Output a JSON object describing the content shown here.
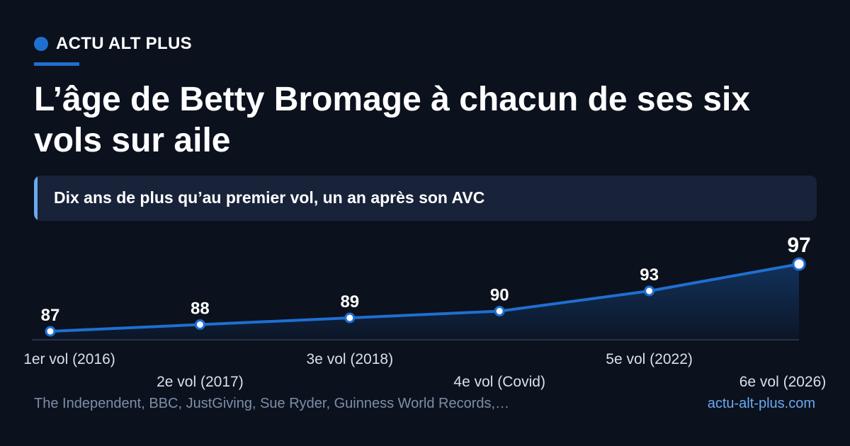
{
  "header": {
    "brand": "ACTU ALT PLUS",
    "title": "L’âge de Betty Bromage à chacun de ses six vols sur aile",
    "subtitle": "Dix ans de plus qu’au premier vol, un an après son AVC"
  },
  "footer": {
    "source": "The Independent, BBC, JustGiving, Sue Ryder, Guinness World Records,…",
    "site": "actu-alt-plus.com"
  },
  "colors": {
    "background": "#0b111d",
    "accent": "#1f6fd1",
    "accent_light": "#6aaaf0",
    "subtitle_bg": "#18233a",
    "muted_text": "#7d8ea8"
  },
  "chart_data": {
    "type": "area",
    "categories": [
      "1er vol (2016)",
      "2e vol (2017)",
      "3e vol (2018)",
      "4e vol (Covid)",
      "5e vol (2022)",
      "6e vol (2026)"
    ],
    "values": [
      87,
      88,
      89,
      90,
      93,
      97
    ],
    "data_labels": [
      "87",
      "88",
      "89",
      "90",
      "93",
      "97"
    ],
    "ylim": [
      86,
      98
    ],
    "highlight_last": true,
    "grid": false
  }
}
